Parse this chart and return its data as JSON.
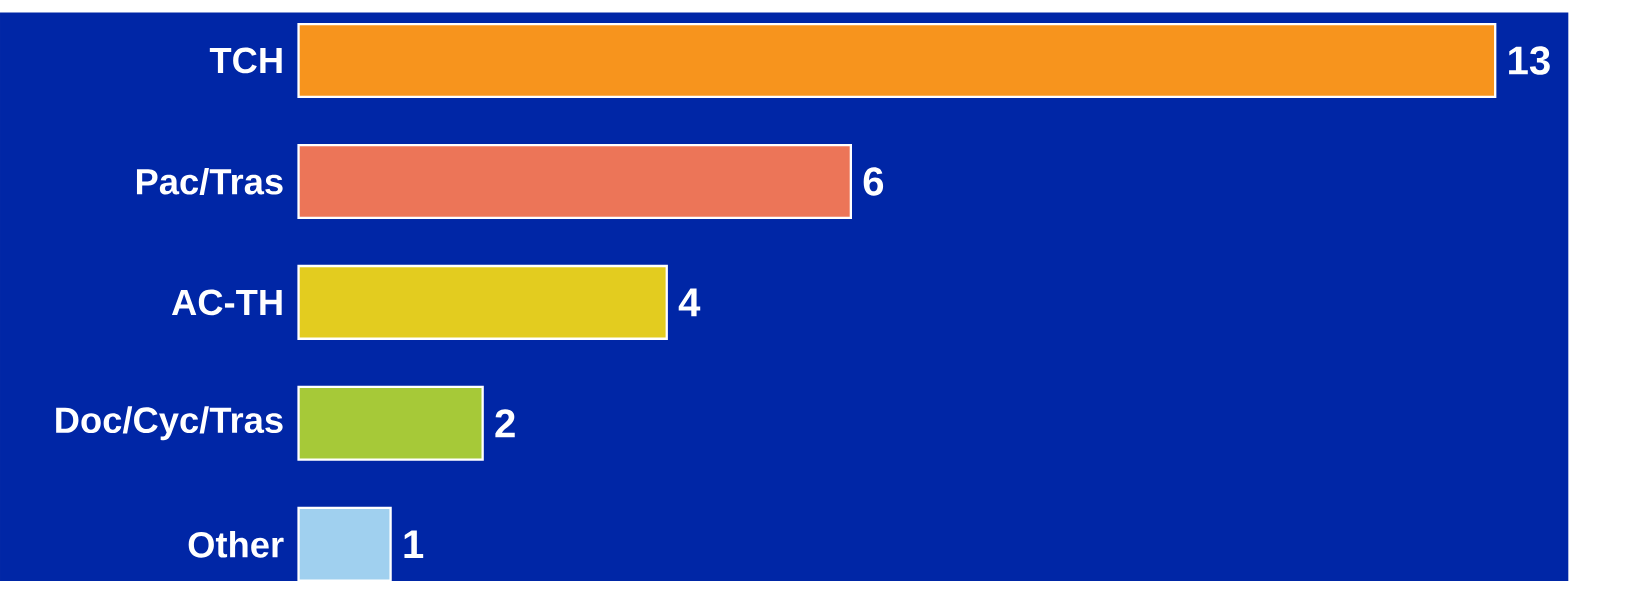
{
  "chart_data": {
    "type": "bar",
    "orientation": "horizontal",
    "categories": [
      "TCH",
      "Pac/Tras",
      "AC-TH",
      "Doc/Cyc/Tras",
      "Other"
    ],
    "values": [
      13,
      6,
      4,
      2,
      1
    ],
    "colors": [
      "#f7941d",
      "#ec7558",
      "#e3cc1f",
      "#a6c938",
      "#a0d0ef"
    ],
    "data_labels": true
  }
}
